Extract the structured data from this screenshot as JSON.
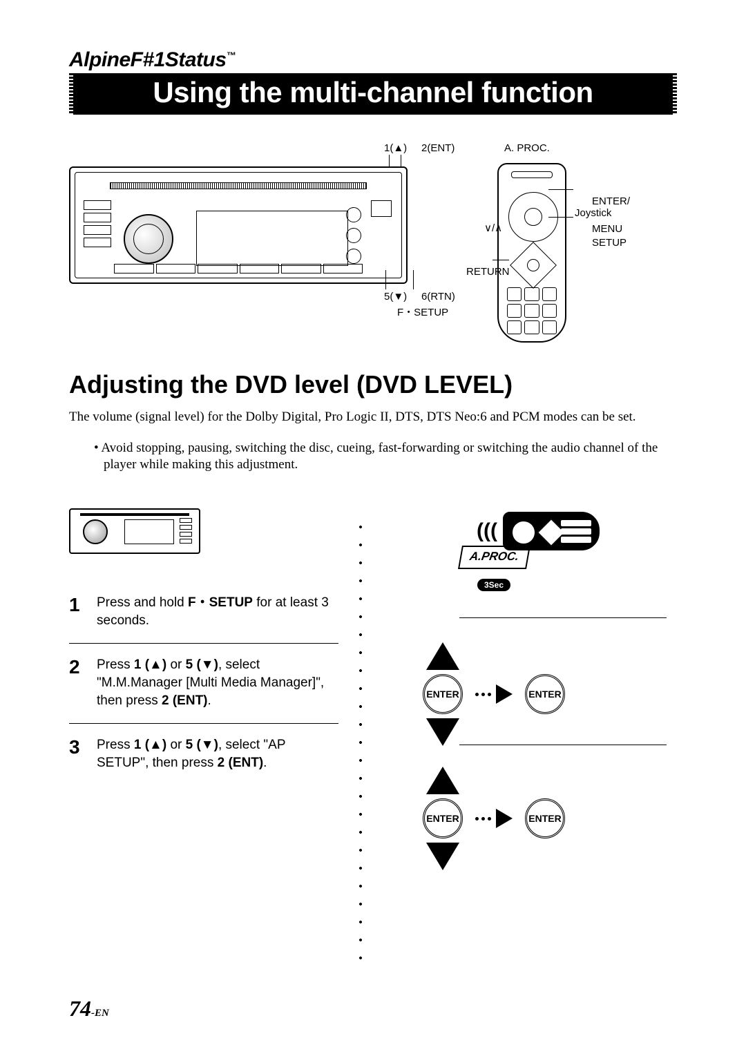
{
  "brand": "AlpineF#1Status",
  "brand_tm": "™",
  "main_title": "Using the multi-channel function",
  "headunit_callouts": {
    "top_left": "1(▲)",
    "top_right": "2(ENT)",
    "bottom_left": "5(▼)",
    "bottom_right": "6(RTN)",
    "f_setup": "F・SETUP",
    "aproc": "A. PROC."
  },
  "remote_callouts": {
    "enter": "ENTER/\nJoystick",
    "menu": "MENU",
    "setup": "SETUP",
    "va": "∨/∧",
    "return": "RETURN"
  },
  "section_heading": "Adjusting the DVD level (DVD LEVEL)",
  "intro_text": "The volume (signal level) for the Dolby Digital, Pro Logic II, DTS, DTS Neo:6 and PCM modes can be set.",
  "note_text": "Avoid stopping, pausing, switching the disc, cueing, fast-forwarding or switching the audio channel of the player while making this adjustment.",
  "mini_remote_waves": "(((",
  "steps": [
    {
      "num": "1",
      "html": "Press and hold <b>F・SETUP</b> for at least 3 seconds."
    },
    {
      "num": "2",
      "html": "Press <b>1 (▲)</b> or <b>5 (▼)</b>, select \"M.M.Manager [Multi Media Manager]\", then press <b>2 (ENT)</b>."
    },
    {
      "num": "3",
      "html": "Press <b>1 (▲)</b> or <b>5 (▼)</b>, select \"AP SETUP\", then press <b>2 (ENT)</b>."
    }
  ],
  "remote_steps": {
    "aproc_label": "A.PROC.",
    "pill_3sec": "3Sec",
    "enter_label": "ENTER"
  },
  "page_number": "74",
  "page_suffix": "-EN",
  "colors": {
    "black": "#000000",
    "white": "#ffffff"
  }
}
